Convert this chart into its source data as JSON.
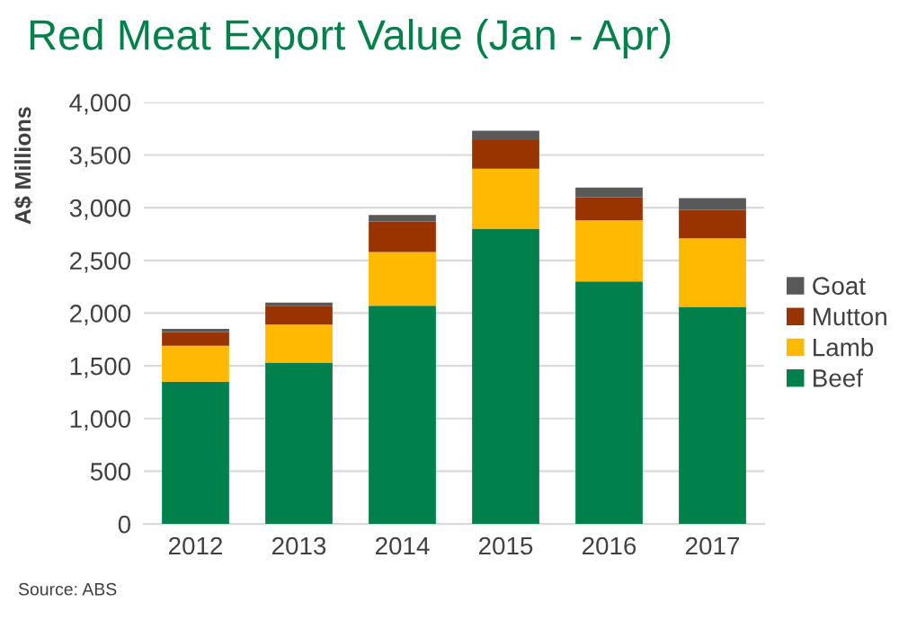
{
  "chart_data": {
    "type": "bar",
    "title": "Red Meat Export Value (Jan - Apr)",
    "ylabel": "A$ Millions",
    "categories": [
      "2012",
      "2013",
      "2014",
      "2015",
      "2016",
      "2017"
    ],
    "stacked": true,
    "series": [
      {
        "name": "Beef",
        "color": "#00804b",
        "values": [
          1350,
          1530,
          2070,
          2800,
          2300,
          2060
        ]
      },
      {
        "name": "Lamb",
        "color": "#ffb900",
        "values": [
          340,
          360,
          510,
          570,
          580,
          650
        ]
      },
      {
        "name": "Mutton",
        "color": "#993300",
        "values": [
          130,
          180,
          290,
          270,
          220,
          270
        ]
      },
      {
        "name": "Goat",
        "color": "#595959",
        "values": [
          30,
          30,
          60,
          90,
          90,
          110
        ]
      }
    ],
    "ylim": [
      0,
      4000
    ],
    "yticks": [
      {
        "value": 0,
        "label": "0"
      },
      {
        "value": 500,
        "label": "500"
      },
      {
        "value": 1000,
        "label": "1,000"
      },
      {
        "value": 1500,
        "label": "1,500"
      },
      {
        "value": 2000,
        "label": "2,000"
      },
      {
        "value": 2500,
        "label": "2,500"
      },
      {
        "value": 3000,
        "label": "3,000"
      },
      {
        "value": 3500,
        "label": "3,500"
      },
      {
        "value": 4000,
        "label": "4,000"
      }
    ],
    "grid": "y",
    "legend": "right",
    "annotations": [
      "Source: ABS"
    ]
  }
}
